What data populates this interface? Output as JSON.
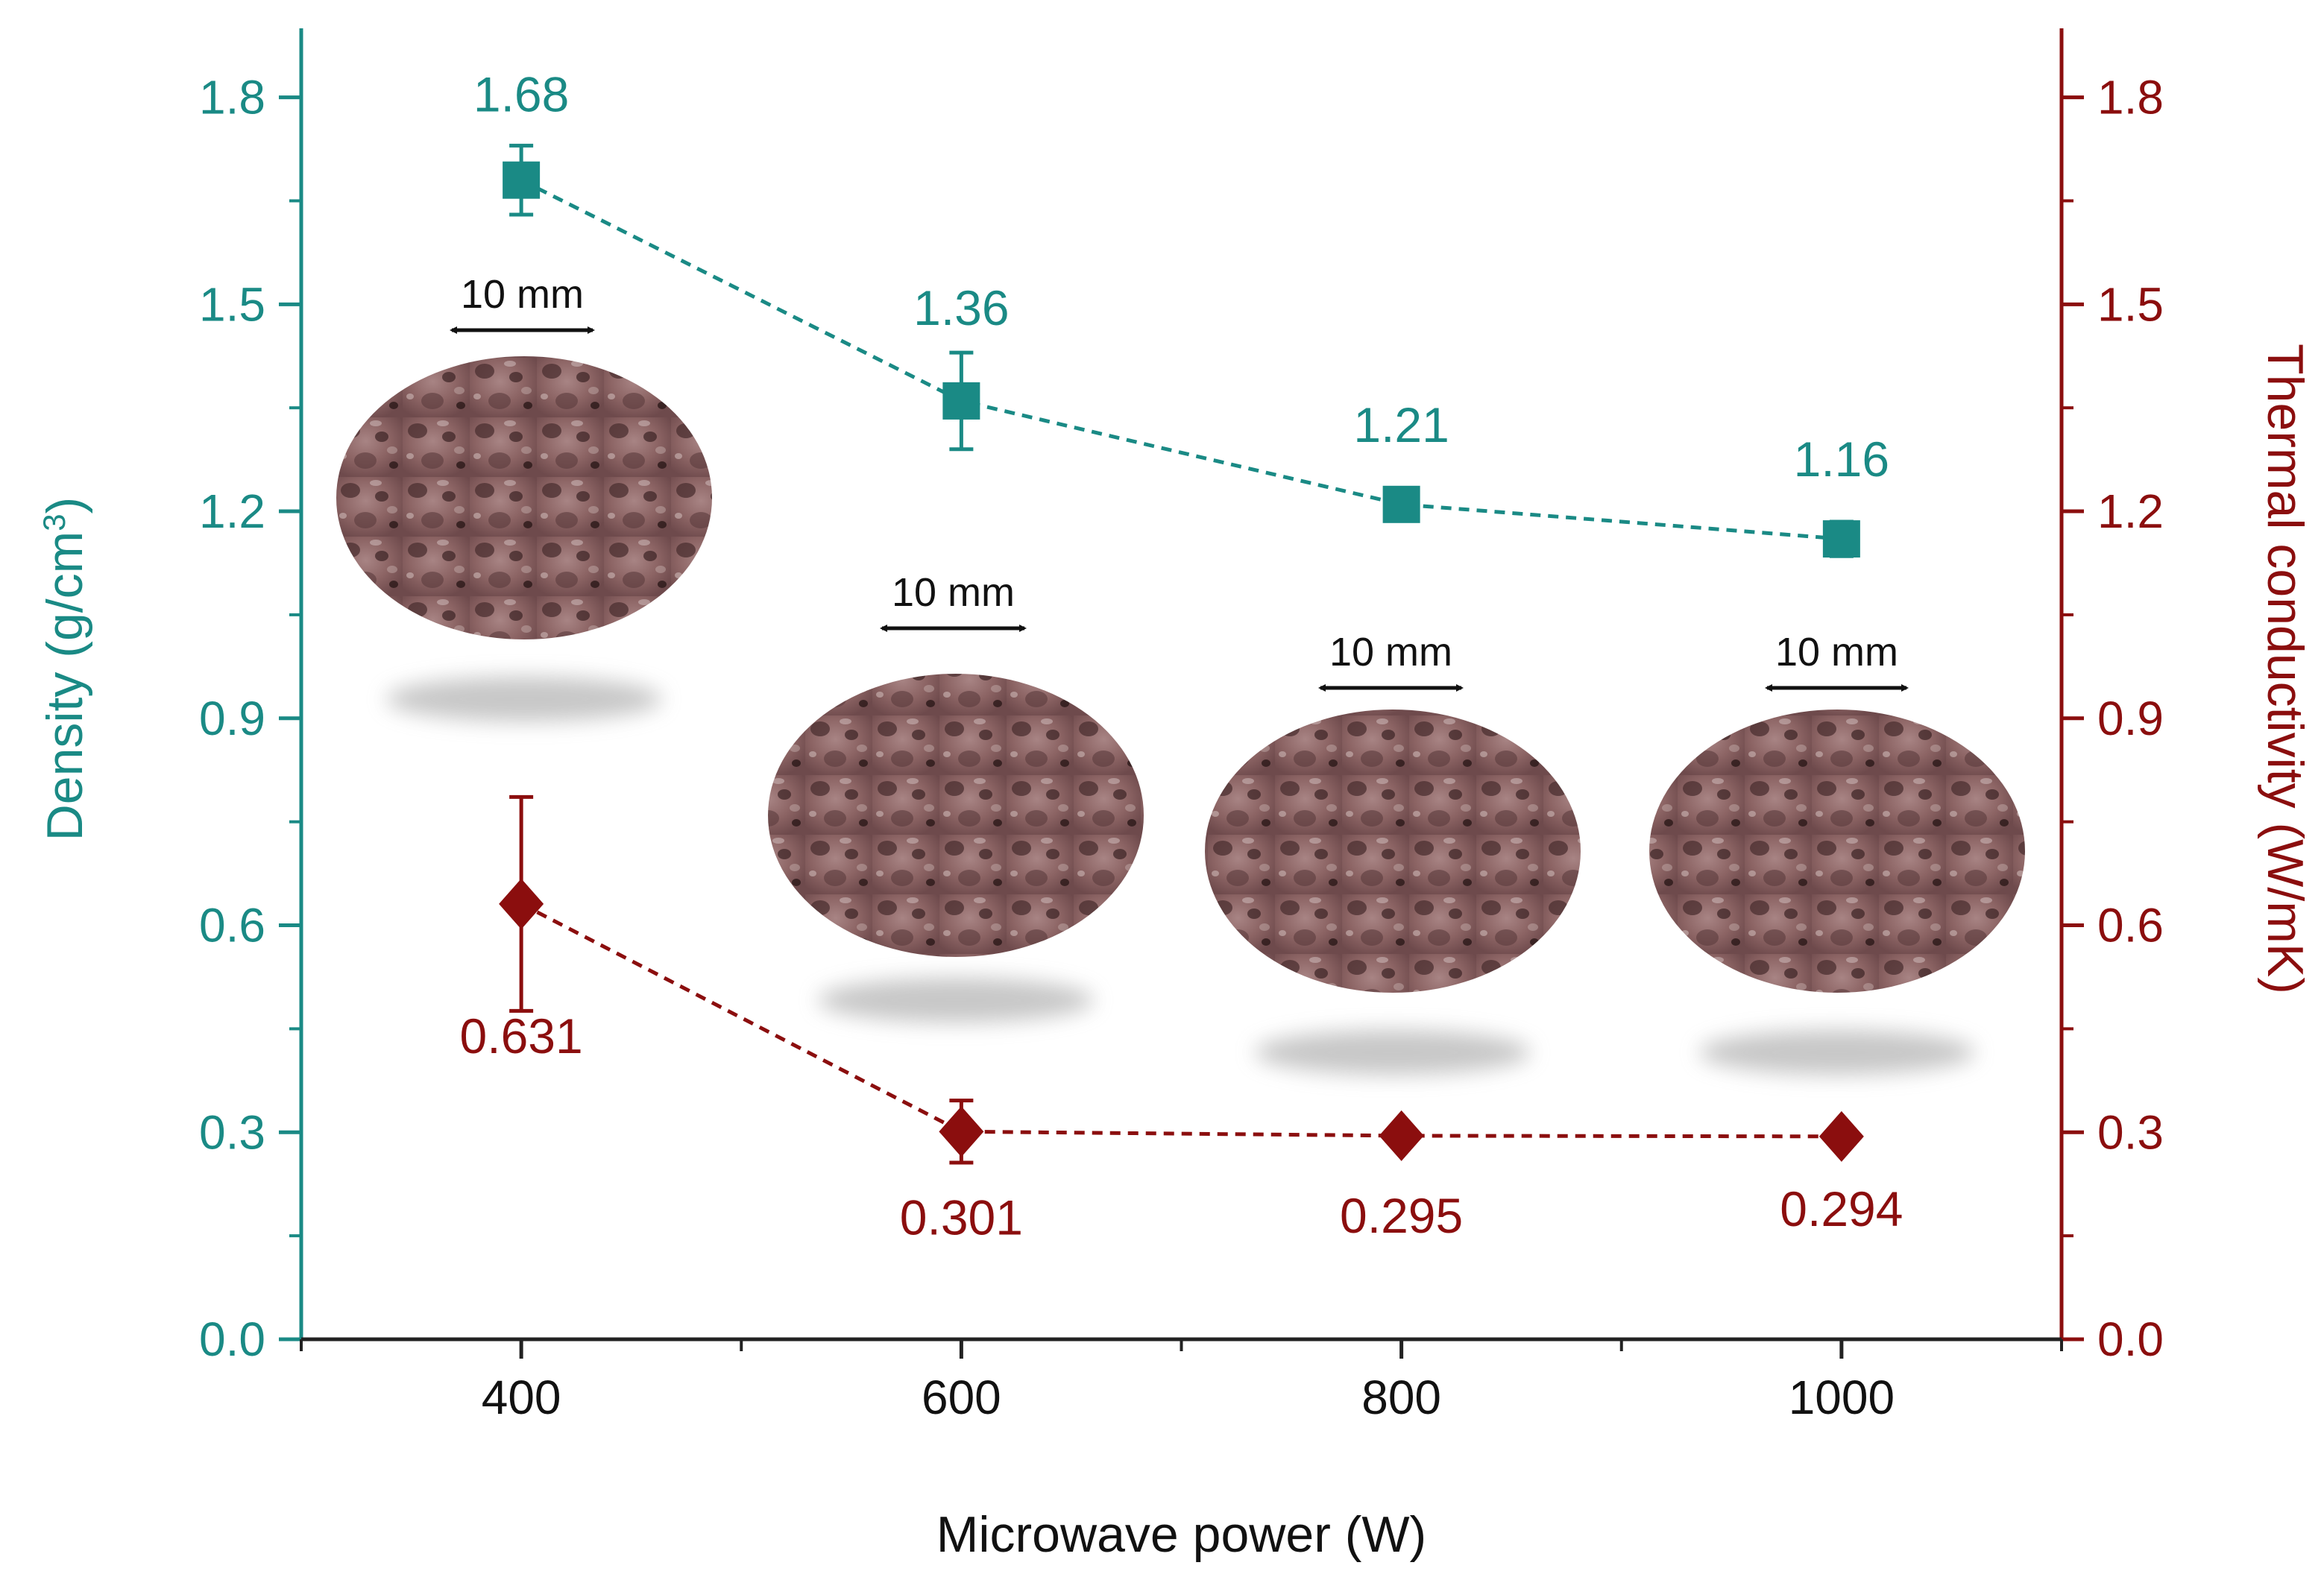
{
  "chart_data": {
    "type": "line",
    "xlabel": "Microwave power (W)",
    "ylabel_left": "Density (g/cm",
    "ylabel_left_sup": "3",
    "ylabel_left_close": ")",
    "ylabel_right": "Thermal conductivity (W/mK)",
    "xlim": [
      300,
      1100
    ],
    "x_major_ticks": [
      400,
      600,
      800,
      1000
    ],
    "x_minor_ticks": [
      300,
      500,
      700,
      900,
      1100
    ],
    "ylim_left": [
      0,
      1.9
    ],
    "ylim_right": [
      0,
      1.9
    ],
    "y_ticks": [
      "0.0",
      "0.3",
      "0.6",
      "0.9",
      "1.2",
      "1.5",
      "1.8"
    ],
    "x": [
      400,
      600,
      800,
      1000
    ],
    "series": [
      {
        "name": "Density",
        "axis": "left",
        "color": "#1a8a85",
        "marker": "square",
        "values": [
          1.68,
          1.36,
          1.21,
          1.16
        ],
        "errors": [
          0.05,
          0.07,
          0.02,
          0.025
        ],
        "labels": [
          "1.68",
          "1.36",
          "1.21",
          "1.16"
        ]
      },
      {
        "name": "Thermal conductivity",
        "axis": "right",
        "color": "#8b0e0e",
        "marker": "diamond",
        "values": [
          0.631,
          0.301,
          0.295,
          0.294
        ],
        "errors": [
          0.155,
          0.045,
          0.0,
          0.0
        ],
        "labels": [
          "0.631",
          "0.301",
          "0.295",
          "0.294"
        ]
      }
    ],
    "scale_bar_label": "10 mm",
    "sample_images": [
      "foam-sample-400W",
      "foam-sample-600W",
      "foam-sample-800W",
      "foam-sample-1000W"
    ]
  }
}
